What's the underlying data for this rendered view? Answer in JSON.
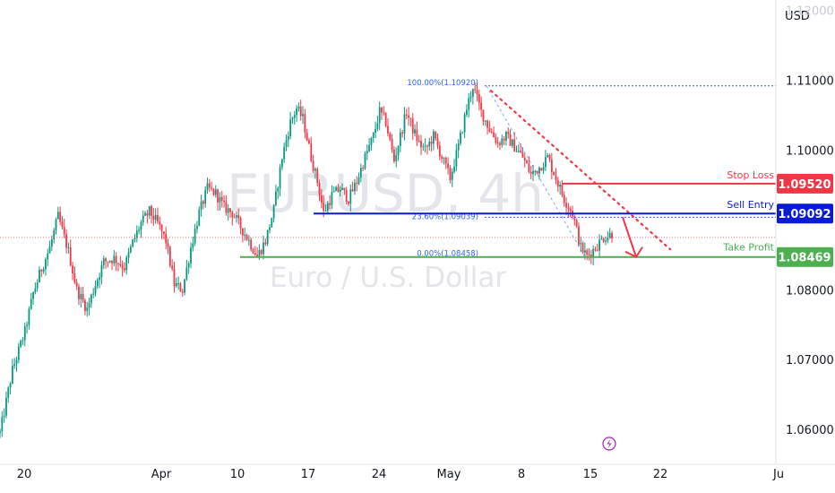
{
  "chart_data": {
    "type": "candlestick",
    "symbol_watermark": "EURUSD, 4h",
    "symbol_description": "Euro / U.S. Dollar",
    "currency": "USD",
    "y_ticks": [
      "1.11000",
      "1.10000",
      "1.08000",
      "1.07000",
      "1.06000"
    ],
    "y_tick_values": [
      1.11,
      1.1,
      1.08,
      1.07,
      1.06
    ],
    "ylim": [
      1.055,
      1.1215
    ],
    "x_ticks": [
      "20",
      "Apr",
      "10",
      "17",
      "24",
      "May",
      "8",
      "15",
      "22",
      "Ju"
    ],
    "levels": [
      {
        "label": "Stop Loss",
        "value": "1.09520",
        "price": 1.0952,
        "color": "#f23645"
      },
      {
        "label": "Sell Entry",
        "value": "1.09092",
        "price": 1.09092,
        "color": "#0a1bd6"
      },
      {
        "label": "Take Profit",
        "value": "1.08469",
        "price": 1.08469,
        "color": "#4caf50"
      }
    ],
    "fib_labels": [
      "100.00%(1.10920)",
      "23.60%(1.09039)",
      "0.00%(1.08458)"
    ],
    "swing_path": [
      [
        0,
        1.0595
      ],
      [
        6,
        1.0685
      ],
      [
        12,
        1.074
      ],
      [
        16,
        1.0795
      ],
      [
        20,
        1.083
      ],
      [
        24,
        1.086
      ],
      [
        28,
        1.0905
      ],
      [
        33,
        1.0855
      ],
      [
        37,
        1.08
      ],
      [
        42,
        1.0772
      ],
      [
        46,
        1.0808
      ],
      [
        50,
        1.084
      ],
      [
        55,
        1.0845
      ],
      [
        60,
        1.0832
      ],
      [
        64,
        1.0868
      ],
      [
        68,
        1.0895
      ],
      [
        72,
        1.0912
      ],
      [
        76,
        1.0895
      ],
      [
        80,
        1.087
      ],
      [
        84,
        1.0808
      ],
      [
        88,
        1.08
      ],
      [
        92,
        1.086
      ],
      [
        96,
        1.091
      ],
      [
        100,
        1.0945
      ],
      [
        104,
        1.0938
      ],
      [
        108,
        1.0918
      ],
      [
        112,
        1.091
      ],
      [
        116,
        1.089
      ],
      [
        120,
        1.087
      ],
      [
        124,
        1.0848
      ],
      [
        128,
        1.087
      ],
      [
        132,
        1.0915
      ],
      [
        136,
        1.099
      ],
      [
        140,
        1.104
      ],
      [
        143,
        1.106
      ],
      [
        146,
        1.1045
      ],
      [
        150,
        1.099
      ],
      [
        153,
        1.0955
      ],
      [
        156,
        1.091
      ],
      [
        160,
        1.0935
      ],
      [
        164,
        1.0945
      ],
      [
        168,
        1.093
      ],
      [
        172,
        1.0955
      ],
      [
        176,
        1.099
      ],
      [
        180,
        1.102
      ],
      [
        183,
        1.1055
      ],
      [
        186,
        1.104
      ],
      [
        190,
        1.0985
      ],
      [
        193,
        1.102
      ],
      [
        196,
        1.1055
      ],
      [
        199,
        1.103
      ],
      [
        202,
        1.101
      ],
      [
        205,
        1.1
      ],
      [
        209,
        1.102
      ],
      [
        213,
        1.099
      ],
      [
        217,
        1.096
      ],
      [
        221,
        1.1005
      ],
      [
        225,
        1.106
      ],
      [
        228,
        1.1092
      ],
      [
        232,
        1.1055
      ],
      [
        236,
        1.103
      ],
      [
        240,
        1.101
      ],
      [
        244,
        1.102
      ],
      [
        248,
        1.1005
      ],
      [
        252,
        1.099
      ],
      [
        256,
        1.0965
      ],
      [
        260,
        1.0975
      ],
      [
        264,
        1.099
      ],
      [
        268,
        1.096
      ],
      [
        272,
        1.093
      ],
      [
        276,
        1.091
      ],
      [
        280,
        1.086
      ],
      [
        283,
        1.0848
      ],
      [
        287,
        1.086
      ],
      [
        291,
        1.0875
      ],
      [
        295,
        1.088
      ]
    ]
  },
  "icons": {
    "event": "lightning-icon"
  }
}
